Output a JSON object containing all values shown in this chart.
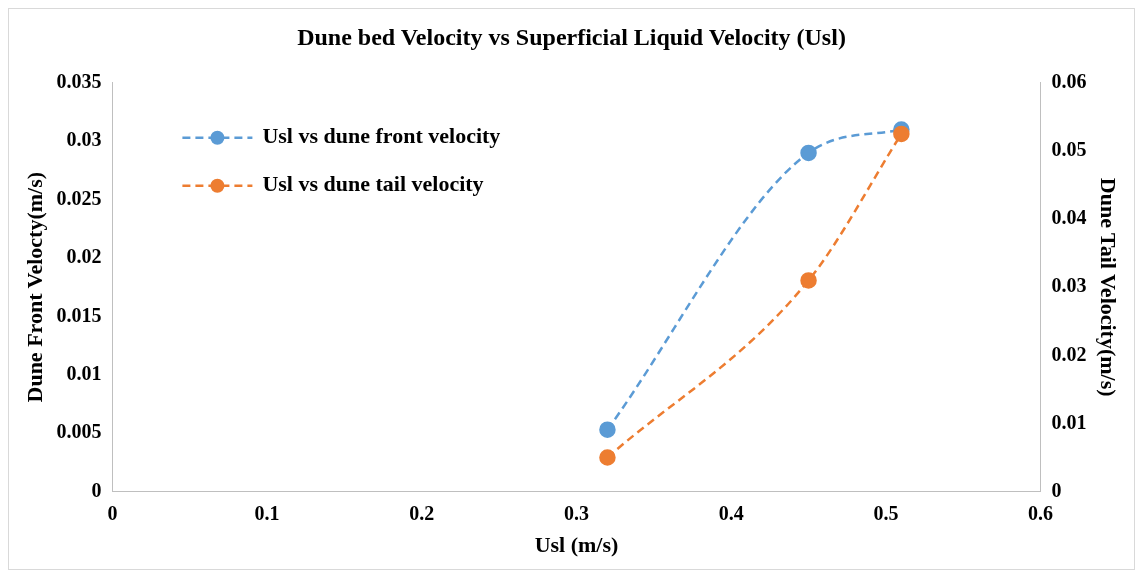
{
  "chart_data": {
    "type": "line",
    "title": "Dune bed Velocity vs Superficial Liquid Velocity (Usl)",
    "xlabel": "Usl (m/s)",
    "ylabel": "Dune Front Velocty(m/s)",
    "y2label": "Dune Tail Velocity(m/s)",
    "x": [
      0.32,
      0.45,
      0.51
    ],
    "series": [
      {
        "name": "Usl vs dune front velocity",
        "color": "#5b9bd5",
        "values": [
          0.0053,
          0.029,
          0.031
        ]
      },
      {
        "name": "Usl vs dune tail velocity",
        "color": "#ed7d31",
        "values": [
          0.005,
          0.031,
          0.0525
        ],
        "axis": "y2"
      }
    ],
    "xlim": [
      0,
      0.6
    ],
    "xticks": [
      0,
      0.1,
      0.2,
      0.3,
      0.4,
      0.5,
      0.6
    ],
    "ylim": [
      0,
      0.035
    ],
    "yticks": [
      0,
      0.005,
      0.01,
      0.015,
      0.02,
      0.025,
      0.03,
      0.035
    ],
    "y2lim": [
      0,
      0.06
    ],
    "y2ticks": [
      0,
      0.01,
      0.02,
      0.03,
      0.04,
      0.05,
      0.06
    ],
    "grid": false,
    "legend": "top left",
    "marker": "circle",
    "line_style": "dashed"
  }
}
